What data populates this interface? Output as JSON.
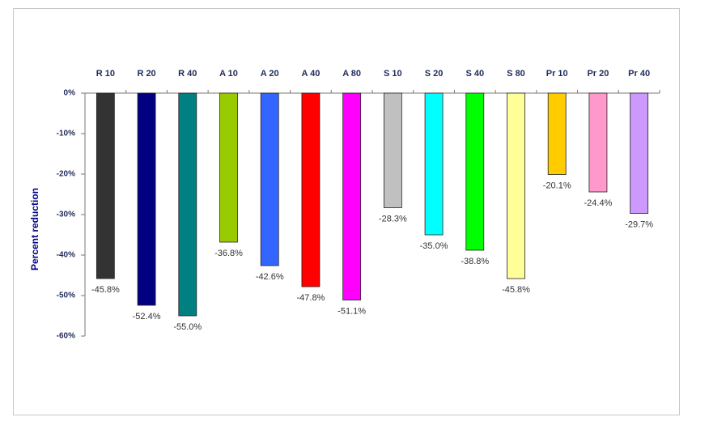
{
  "chart_data": {
    "type": "bar",
    "y_label": "Percent reduction",
    "categories": [
      "R 10",
      "R 20",
      "R 40",
      "A 10",
      "A 20",
      "A 40",
      "A 80",
      "S 10",
      "S 20",
      "S 40",
      "S 80",
      "Pr 10",
      "Pr 20",
      "Pr 40"
    ],
    "values": [
      -45.8,
      -52.4,
      -55.0,
      -36.8,
      -42.6,
      -47.8,
      -51.1,
      -28.3,
      -35.0,
      -38.8,
      -45.8,
      -20.1,
      -24.4,
      -29.7
    ],
    "value_labels": [
      "-45.8%",
      "-52.4%",
      "-55.0%",
      "-36.8%",
      "-42.6%",
      "-47.8%",
      "-51.1%",
      "-28.3%",
      "-35.0%",
      "-38.8%",
      "-45.8%",
      "-20.1%",
      "-24.4%",
      "-29.7%"
    ],
    "colors": [
      "#333333",
      "#000080",
      "#008080",
      "#99cc00",
      "#3366ff",
      "#ff0000",
      "#ff00ff",
      "#c0c0c0",
      "#00ffff",
      "#00ff00",
      "#ffff99",
      "#ffcc00",
      "#ff99cc",
      "#cc99ff"
    ],
    "ylim": [
      -60,
      0
    ],
    "yticks": [
      {
        "value": 0,
        "label": "0%"
      },
      {
        "value": -10,
        "label": "-10%"
      },
      {
        "value": -20,
        "label": "-20%"
      },
      {
        "value": -30,
        "label": "-30%"
      },
      {
        "value": -40,
        "label": "-40%"
      },
      {
        "value": -50,
        "label": "-50%"
      },
      {
        "value": -60,
        "label": "-60%"
      }
    ]
  }
}
